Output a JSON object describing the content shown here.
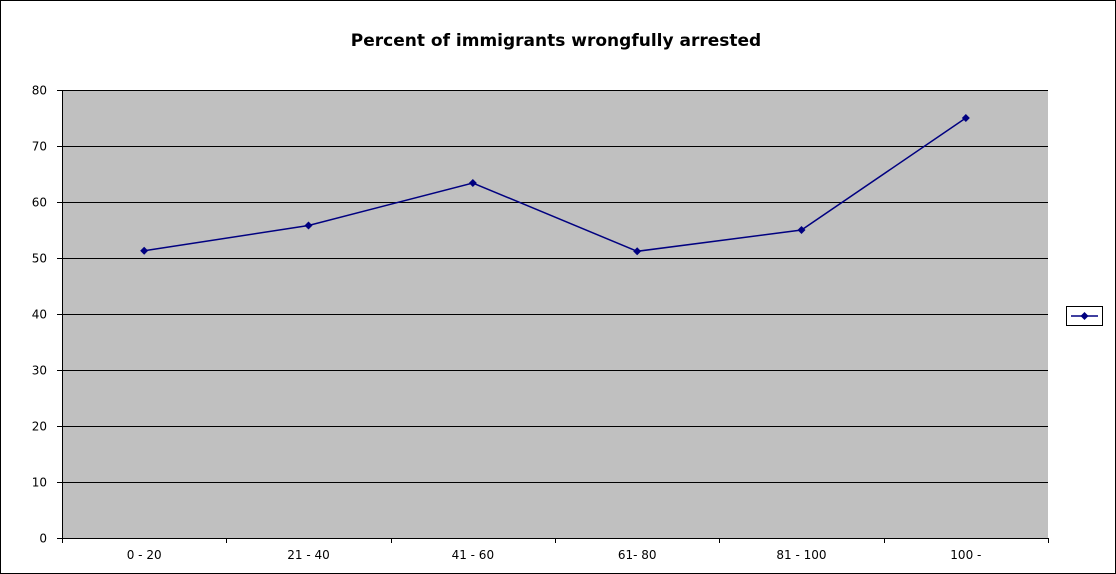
{
  "chart_data": {
    "type": "line",
    "title": "Percent of immigrants wrongfully arrested",
    "categories": [
      "0 - 20",
      "21 - 40",
      "41 - 60",
      "61- 80",
      "81 - 100",
      "100 -"
    ],
    "series": [
      {
        "values": [
          51.3,
          55.8,
          63.4,
          51.2,
          55.0,
          75.0
        ],
        "color": "#000080",
        "marker": "diamond"
      }
    ],
    "ylim": [
      0,
      80
    ],
    "yticks": [
      0,
      10,
      20,
      30,
      40,
      50,
      60,
      70,
      80
    ],
    "xlabel": "",
    "ylabel": "",
    "grid": true,
    "plot_background": "#c0c0c0",
    "legend": {
      "position": "right",
      "show_marker": true
    }
  }
}
